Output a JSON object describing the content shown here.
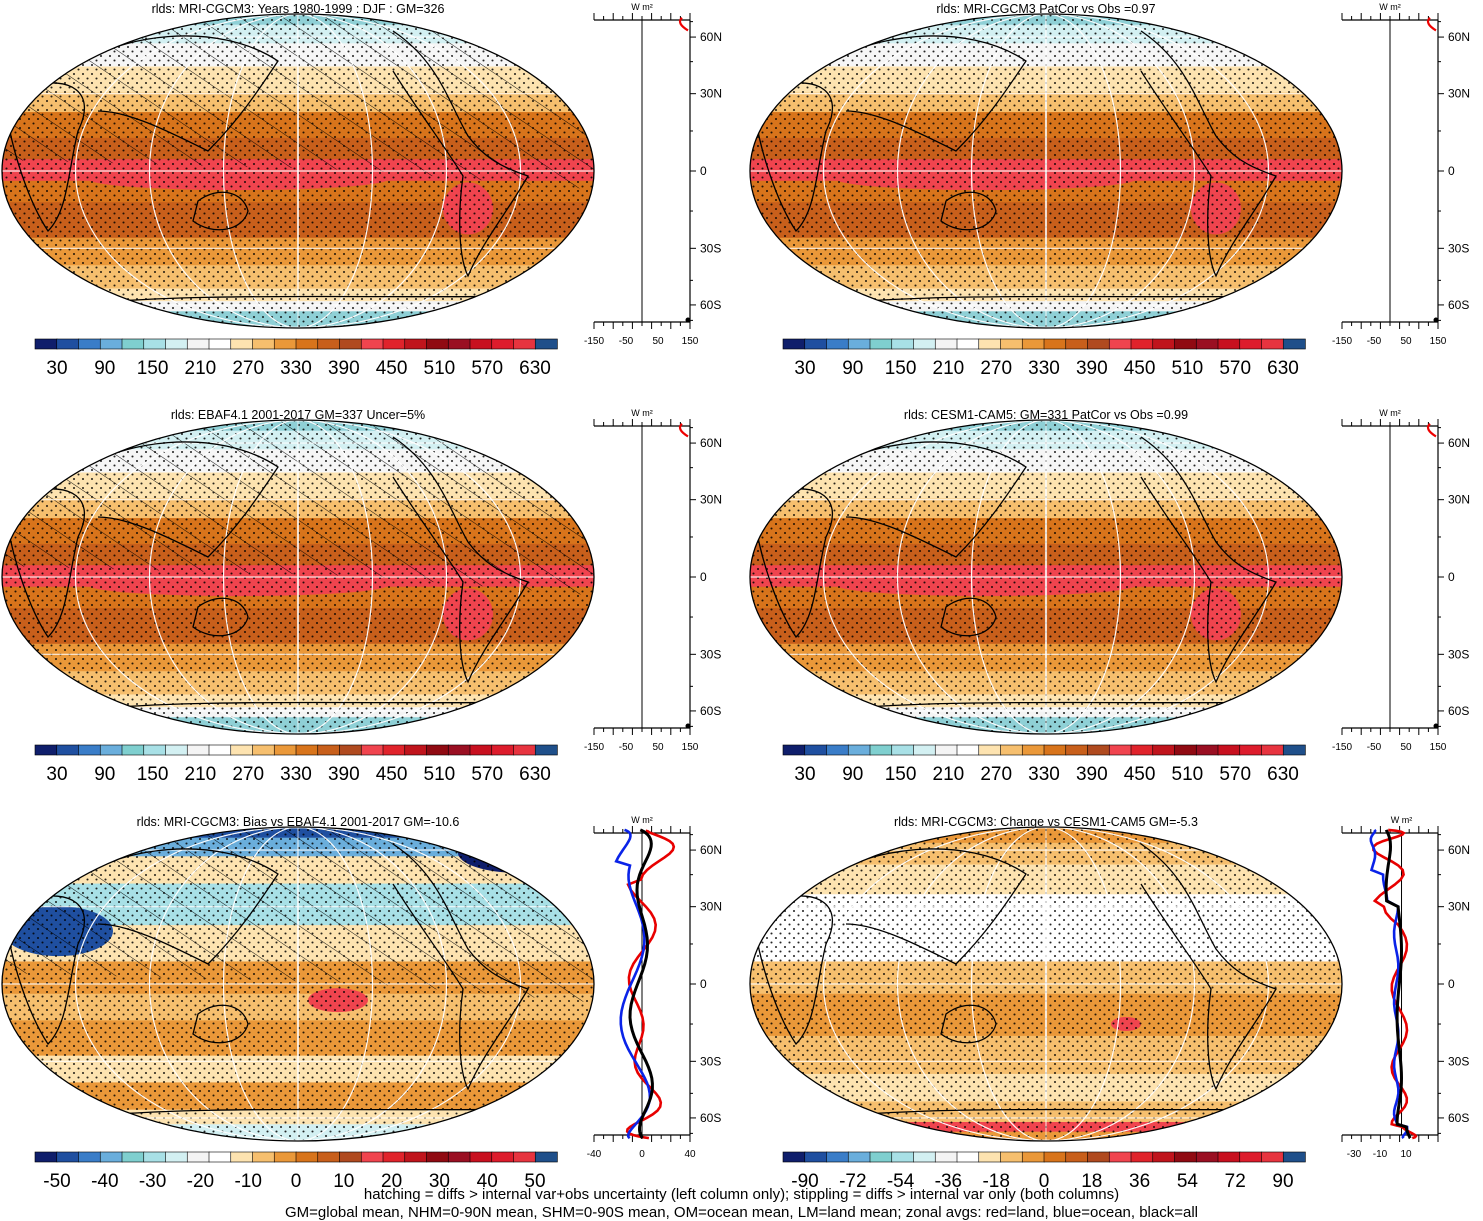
{
  "panels": [
    {
      "title": "rlds: MRI-CGCM3: Years 1980-1999 : DJF : GM=326",
      "kind": "abs",
      "hatch": true
    },
    {
      "title": "rlds: MRI-CGCM3 PatCor vs Obs =0.97",
      "kind": "abs",
      "hatch": false
    },
    {
      "title": "rlds: EBAF4.1 2001-2017 GM=337 Uncer=5%",
      "kind": "abs",
      "hatch": true
    },
    {
      "title": "rlds: CESM1-CAM5: GM=331 PatCor vs Obs =0.99",
      "kind": "abs",
      "hatch": false
    },
    {
      "title": "rlds: MRI-CGCM3: Bias vs EBAF4.1 2001-2017 GM=-10.6",
      "kind": "bias",
      "hatch": true
    },
    {
      "title": "rlds: MRI-CGCM3: Change vs CESM1-CAM5 GM=-5.3",
      "kind": "change",
      "hatch": false
    }
  ],
  "colorbars": {
    "abs": {
      "labels": [
        "30",
        "90",
        "150",
        "210",
        "270",
        "330",
        "390",
        "450",
        "510",
        "570",
        "630"
      ],
      "colors": [
        "#0f1e6b",
        "#1f4fa0",
        "#3a7dc8",
        "#6aaedc",
        "#7fcfcf",
        "#a8e0e6",
        "#d3f0f2",
        "#f4f4f4",
        "#ffffff",
        "#fde3b0",
        "#f6bf6e",
        "#ea9839",
        "#d8741b",
        "#c85f1b",
        "#b04a1f",
        "#f0444e",
        "#e0232b",
        "#c0141c",
        "#900a12",
        "#9a0f22",
        "#c8101f",
        "#dd1c2c",
        "#e7343f",
        "#1f4f8a"
      ]
    },
    "bias": {
      "labels": [
        "-50",
        "-40",
        "-30",
        "-20",
        "-10",
        "0",
        "10",
        "20",
        "30",
        "40",
        "50"
      ],
      "colors": [
        "#0f1e6b",
        "#1f4fa0",
        "#3a7dc8",
        "#6aaedc",
        "#7fcfcf",
        "#a8e0e6",
        "#d3f0f2",
        "#f4f4f4",
        "#ffffff",
        "#fde3b0",
        "#f6bf6e",
        "#ea9839",
        "#d8741b",
        "#c85f1b",
        "#b04a1f",
        "#f0444e",
        "#e0232b",
        "#c0141c",
        "#900a12",
        "#9a0f22",
        "#c8101f",
        "#dd1c2c",
        "#e7343f",
        "#1f4f8a"
      ]
    },
    "change": {
      "labels": [
        "-90",
        "-72",
        "-54",
        "-36",
        "-18",
        "0",
        "18",
        "36",
        "54",
        "72",
        "90"
      ],
      "colors": [
        "#0f1e6b",
        "#1f4fa0",
        "#3a7dc8",
        "#6aaedc",
        "#7fcfcf",
        "#a8e0e6",
        "#d3f0f2",
        "#f4f4f4",
        "#ffffff",
        "#fde3b0",
        "#f6bf6e",
        "#ea9839",
        "#d8741b",
        "#c85f1b",
        "#b04a1f",
        "#f0444e",
        "#e0232b",
        "#c0141c",
        "#900a12",
        "#9a0f22",
        "#c8101f",
        "#dd1c2c",
        "#e7343f",
        "#1f4f8a"
      ]
    }
  },
  "zonal": {
    "unit": "W m²",
    "lat_labels": [
      "60N",
      "30N",
      "0",
      "30S",
      "60S"
    ],
    "abs_xticks": [
      "-150",
      "-50",
      "50",
      "150"
    ],
    "bias_xticks": [
      "-40",
      "0",
      "40"
    ],
    "change_xticks": [
      "-30",
      "-10",
      "10"
    ]
  },
  "footer": {
    "line1": "hatching = diffs > internal var+obs uncertainty (left column only); stippling = diffs > internal var only (both columns)",
    "line2": "GM=global mean, NHM=0-90N mean, SHM=0-90S mean, OM=ocean mean, LM=land mean; zonal avgs: red=land, blue=ocean, black=all"
  },
  "chart_data": [
    {
      "type": "heatmap",
      "title": "rlds: MRI-CGCM3: Years 1980-1999 : DJF : GM=326",
      "projection": "Robinson",
      "units": "W m-2",
      "colorbar_labels": [
        "30",
        "90",
        "150",
        "210",
        "270",
        "330",
        "390",
        "450",
        "510",
        "570",
        "630"
      ],
      "zonal_lat_labels": [
        "60N",
        "30N",
        "0",
        "30S",
        "60S"
      ],
      "zonal_xticks": [
        "-150",
        "-50",
        "50",
        "150"
      ]
    },
    {
      "type": "heatmap",
      "title": "rlds: MRI-CGCM3 PatCor vs Obs =0.97",
      "projection": "Robinson",
      "units": "W m-2",
      "colorbar_labels": [
        "30",
        "90",
        "150",
        "210",
        "270",
        "330",
        "390",
        "450",
        "510",
        "570",
        "630"
      ],
      "zonal_lat_labels": [
        "60N",
        "30N",
        "0",
        "30S",
        "60S"
      ],
      "zonal_xticks": [
        "-150",
        "-50",
        "50",
        "150"
      ]
    },
    {
      "type": "heatmap",
      "title": "rlds: EBAF4.1 2001-2017 GM=337 Uncer=5%",
      "projection": "Robinson",
      "units": "W m-2",
      "colorbar_labels": [
        "30",
        "90",
        "150",
        "210",
        "270",
        "330",
        "390",
        "450",
        "510",
        "570",
        "630"
      ],
      "zonal_lat_labels": [
        "60N",
        "30N",
        "0",
        "30S",
        "60S"
      ],
      "zonal_xticks": [
        "-150",
        "-50",
        "50",
        "150"
      ]
    },
    {
      "type": "heatmap",
      "title": "rlds: CESM1-CAM5: GM=331 PatCor vs Obs =0.99",
      "projection": "Robinson",
      "units": "W m-2",
      "colorbar_labels": [
        "30",
        "90",
        "150",
        "210",
        "270",
        "330",
        "390",
        "450",
        "510",
        "570",
        "630"
      ],
      "zonal_lat_labels": [
        "60N",
        "30N",
        "0",
        "30S",
        "60S"
      ],
      "zonal_xticks": [
        "-150",
        "-50",
        "50",
        "150"
      ]
    },
    {
      "type": "heatmap",
      "title": "rlds: MRI-CGCM3: Bias vs EBAF4.1 2001-2017 GM=-10.6",
      "projection": "Robinson",
      "units": "W m-2",
      "colorbar_labels": [
        "-50",
        "-40",
        "-30",
        "-20",
        "-10",
        "0",
        "10",
        "20",
        "30",
        "40",
        "50"
      ],
      "zonal_lat_labels": [
        "60N",
        "30N",
        "0",
        "30S",
        "60S"
      ],
      "zonal_xticks": [
        "-40",
        "0",
        "40"
      ],
      "zonal_series": [
        "land (red)",
        "ocean (blue)",
        "all (black)"
      ]
    },
    {
      "type": "heatmap",
      "title": "rlds: MRI-CGCM3: Change vs CESM1-CAM5 GM=-5.3",
      "projection": "Robinson",
      "units": "W m-2",
      "colorbar_labels": [
        "-90",
        "-72",
        "-54",
        "-36",
        "-18",
        "0",
        "18",
        "36",
        "54",
        "72",
        "90"
      ],
      "zonal_lat_labels": [
        "60N",
        "30N",
        "0",
        "30S",
        "60S"
      ],
      "zonal_xticks": [
        "-30",
        "-10",
        "10"
      ],
      "zonal_series": [
        "land (red)",
        "ocean (blue)",
        "all (black)"
      ]
    }
  ]
}
